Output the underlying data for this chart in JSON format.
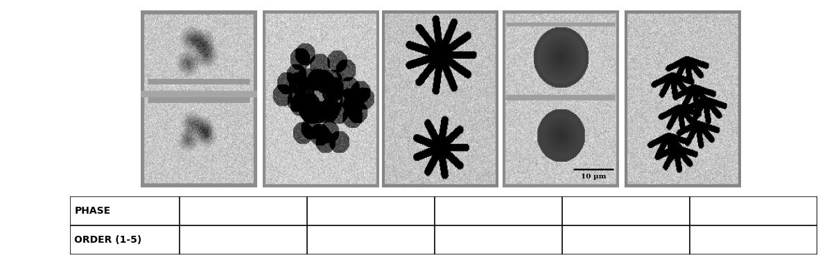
{
  "background_color": "#ffffff",
  "fig_width": 11.93,
  "fig_height": 3.76,
  "table_row_labels": [
    "PHASE",
    "ORDER (1-5)"
  ],
  "scale_bar_text": "10 µm",
  "table_label_fontsize": 10
}
